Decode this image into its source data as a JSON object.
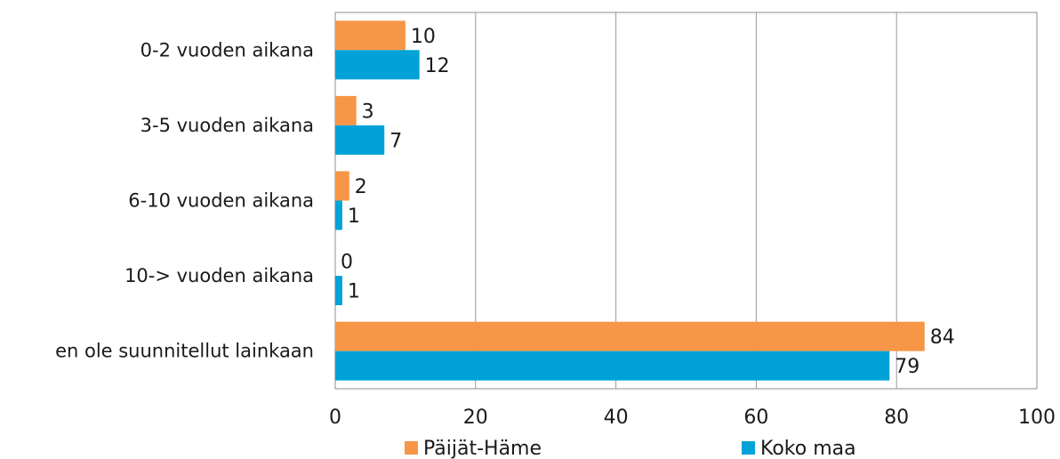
{
  "chart_data": {
    "type": "bar",
    "orientation": "horizontal",
    "categories": [
      "0-2 vuoden aikana",
      "3-5 vuoden aikana",
      "6-10 vuoden aikana",
      "10-> vuoden aikana",
      "en ole suunnitellut lainkaan"
    ],
    "series": [
      {
        "name": "Päijät-Häme",
        "color": "#F79646",
        "values": [
          10,
          3,
          2,
          0,
          84
        ],
        "labels": [
          "10",
          "3",
          "2",
          "0",
          "84"
        ]
      },
      {
        "name": "Koko maa",
        "color": "#00A2D8",
        "values": [
          12,
          7,
          1,
          1,
          79
        ],
        "labels": [
          "12",
          "7",
          "1",
          "1",
          "79"
        ]
      }
    ],
    "xlim": [
      0,
      100
    ],
    "xticks": [
      0,
      20,
      40,
      60,
      80,
      100
    ],
    "xtick_labels": [
      "0",
      "20",
      "40",
      "60",
      "80",
      "100"
    ],
    "grid": true,
    "legend_position": "bottom",
    "title": "",
    "xlabel": "",
    "ylabel": ""
  }
}
